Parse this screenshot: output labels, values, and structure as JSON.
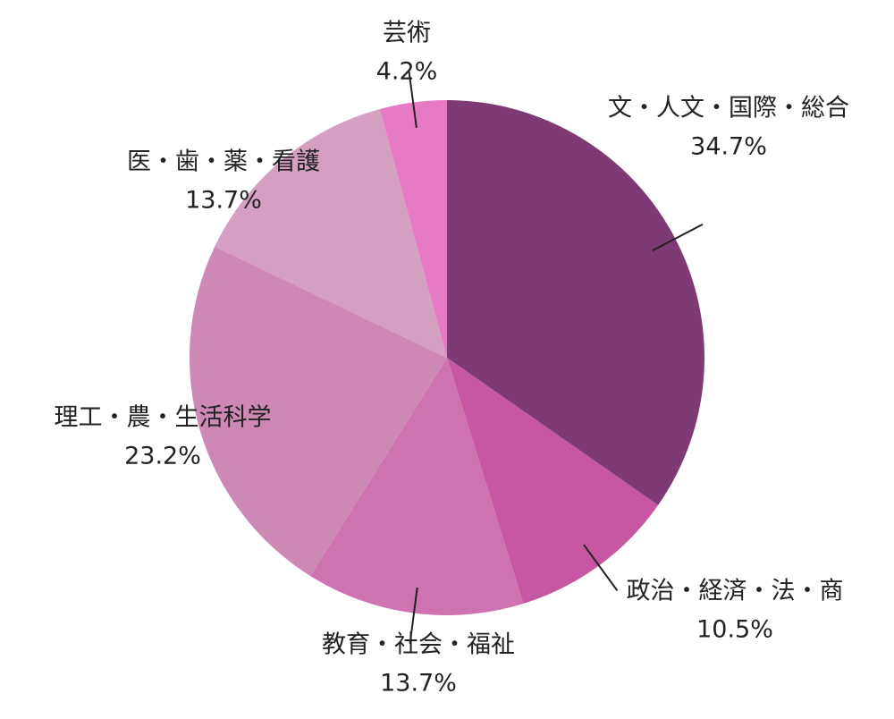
{
  "chart_data": {
    "type": "pie",
    "categories": [
      "文・人文・国際・総合",
      "政治・経済・法・商",
      "教育・社会・福祉",
      "理工・農・生活科学",
      "医・歯・薬・看護",
      "芸術"
    ],
    "values": [
      34.7,
      10.5,
      13.7,
      23.2,
      13.7,
      4.2
    ],
    "value_labels": [
      "34.7%",
      "10.5%",
      "13.7%",
      "23.2%",
      "13.7%",
      "4.2%"
    ],
    "colors": [
      "#7e3a74",
      "#c657a3",
      "#cf72b1",
      "#cd88b3",
      "#d59fc2",
      "#e67ac5"
    ]
  }
}
